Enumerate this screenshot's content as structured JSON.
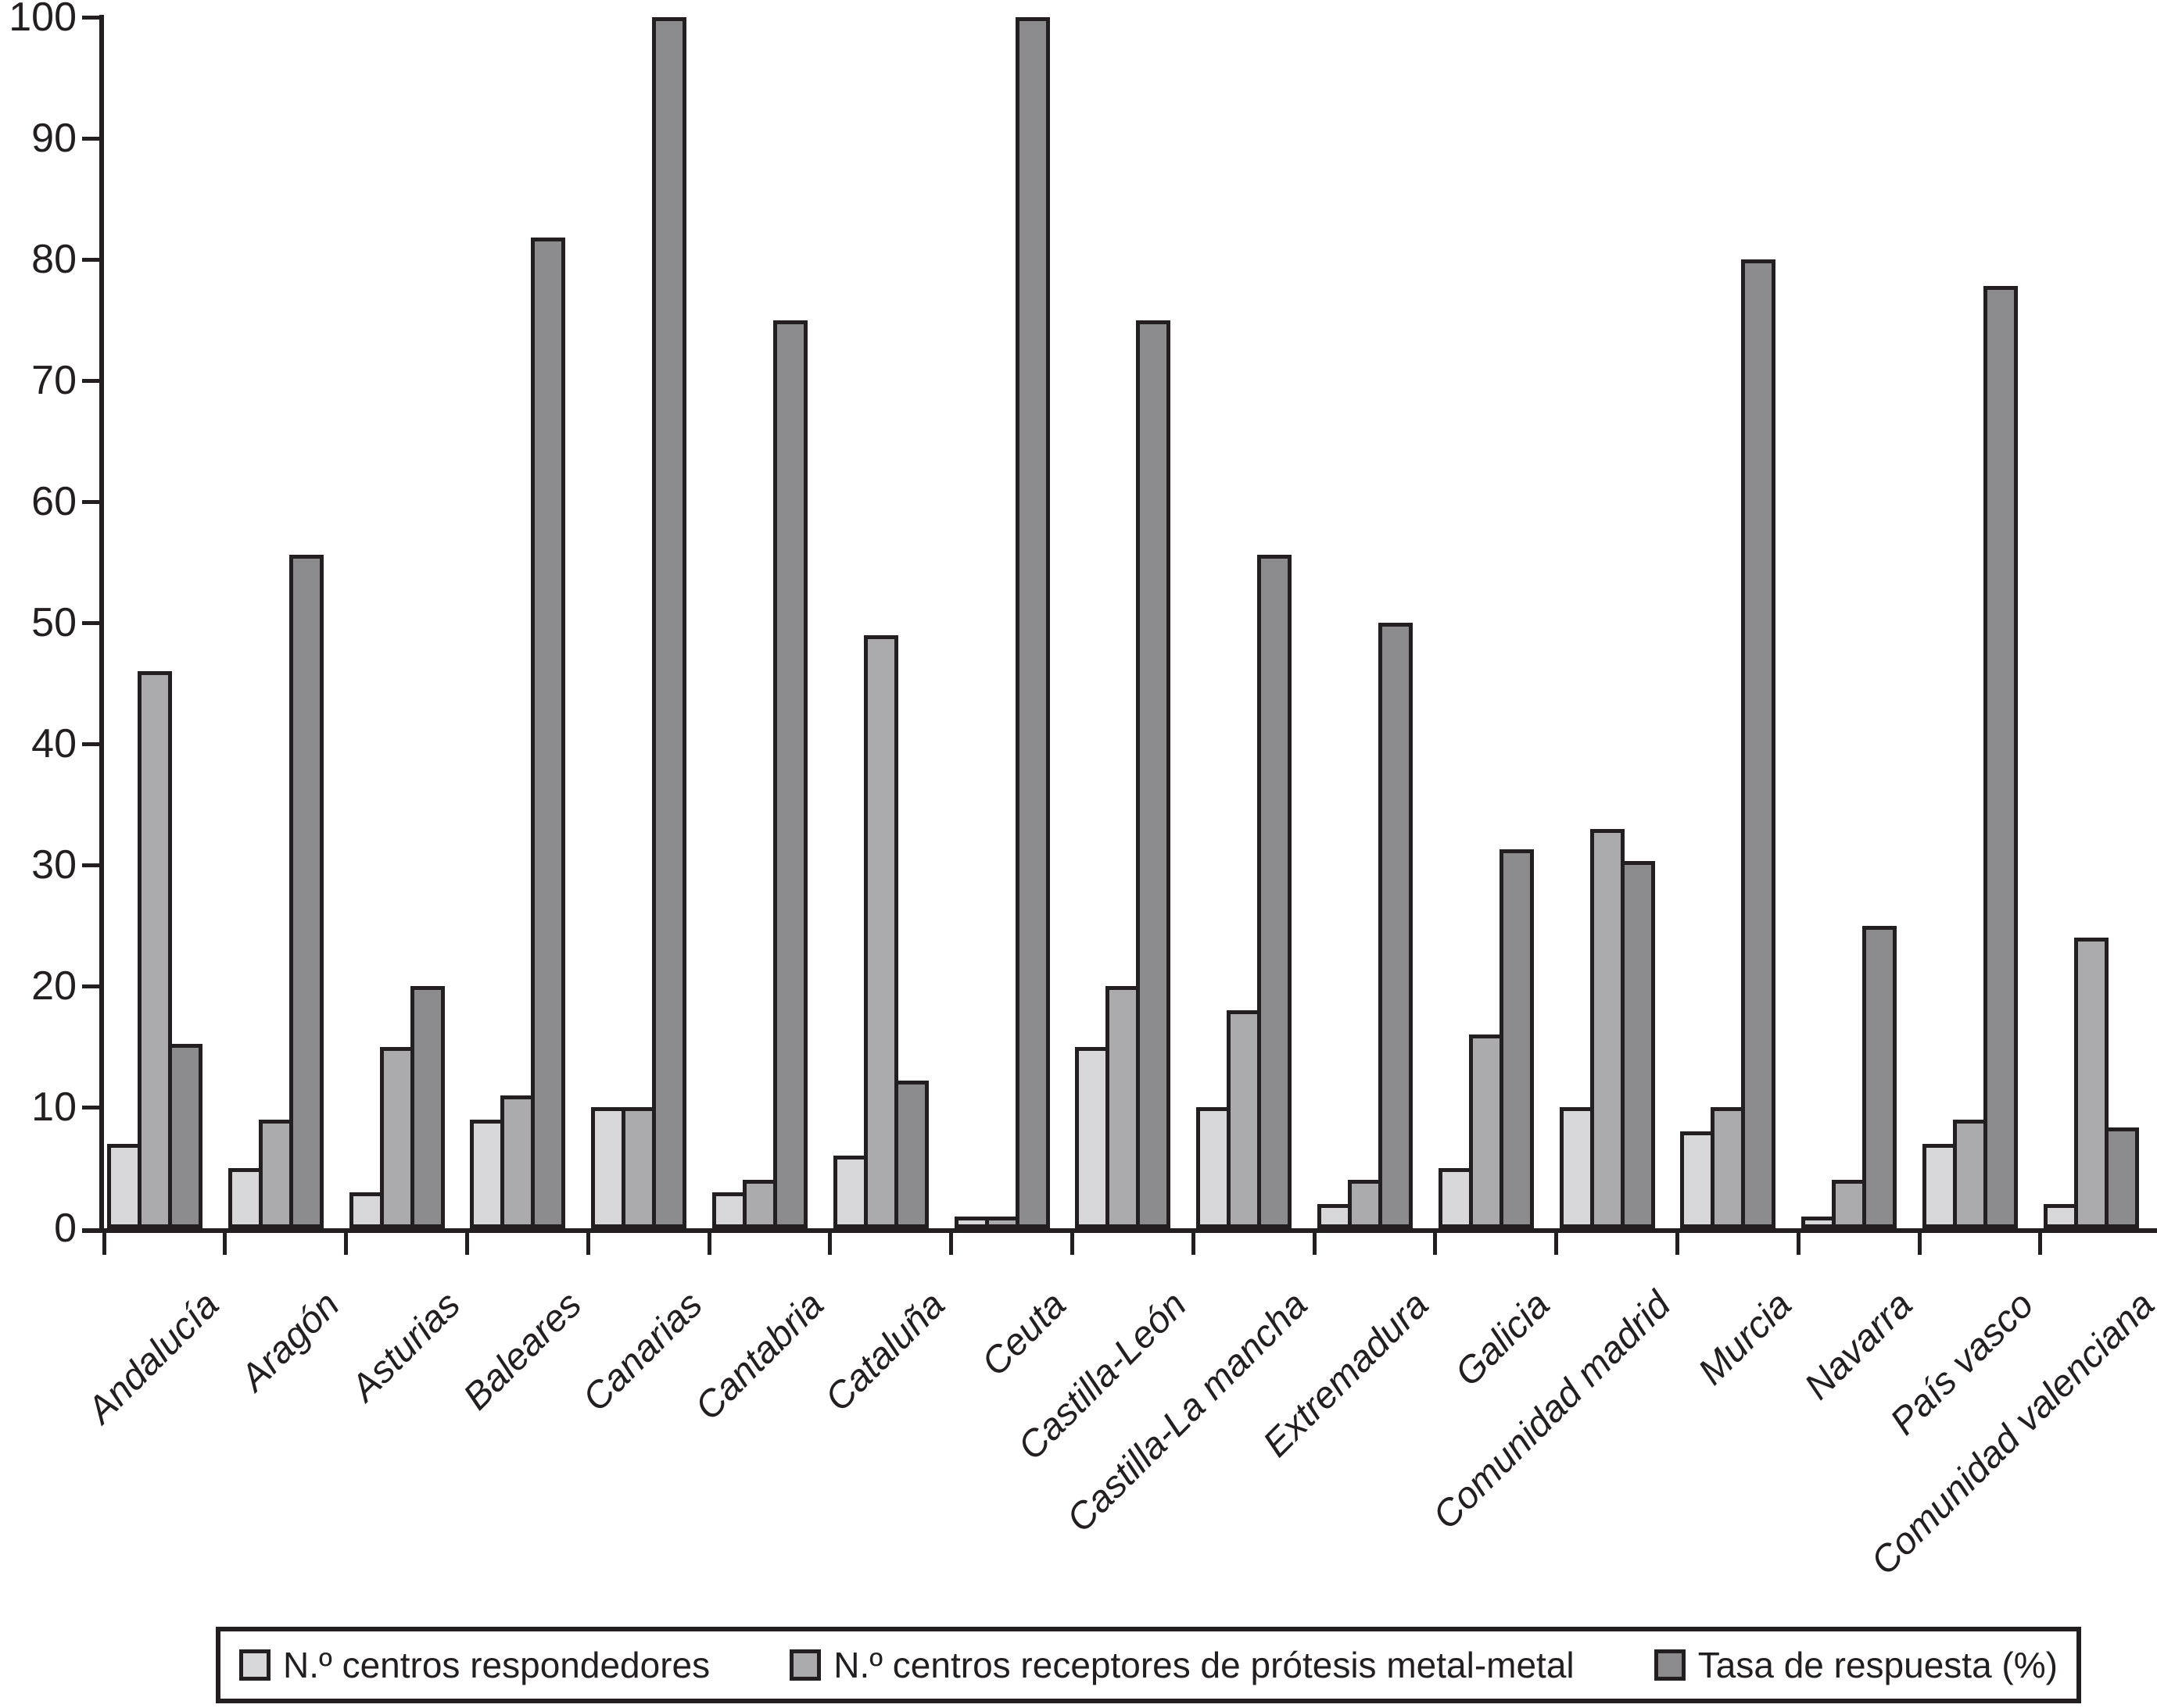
{
  "chart_data": {
    "type": "bar",
    "title": "",
    "xlabel": "",
    "ylabel": "",
    "ylim": [
      0,
      100
    ],
    "yticks": [
      0,
      10,
      20,
      30,
      40,
      50,
      60,
      70,
      80,
      90,
      100
    ],
    "grid": false,
    "legend_position": "bottom",
    "bar_outline_color": "#231f20",
    "categories": [
      "Andalucía",
      "Aragón",
      "Asturias",
      "Baleares",
      "Canarias",
      "Cantabria",
      "Cataluña",
      "Ceuta",
      "Castilla-León",
      "Castilla-La mancha",
      "Extremadura",
      "Galicia",
      "Comunidad madrid",
      "Murcia",
      "Navarra",
      "País vasco",
      "Comunidad valenciana"
    ],
    "series": [
      {
        "name": "N.º centros respondedores",
        "color": "#d8d8da",
        "values": [
          7,
          5,
          3,
          9,
          10,
          3,
          6,
          1,
          15,
          10,
          2,
          5,
          10,
          8,
          1,
          7,
          2
        ]
      },
      {
        "name": "N.º centros receptores de prótesis metal-metal",
        "color": "#ababae",
        "values": [
          46,
          9,
          15,
          11,
          10,
          4,
          49,
          1,
          20,
          18,
          4,
          16,
          33,
          10,
          4,
          9,
          24
        ]
      },
      {
        "name": "Tasa de respuesta (%)",
        "color": "#8c8c8f",
        "values": [
          15.2,
          55.6,
          20,
          81.8,
          100,
          75,
          12.2,
          100,
          75,
          55.6,
          50,
          31.3,
          30.3,
          80,
          25,
          77.8,
          8.3
        ]
      }
    ]
  }
}
